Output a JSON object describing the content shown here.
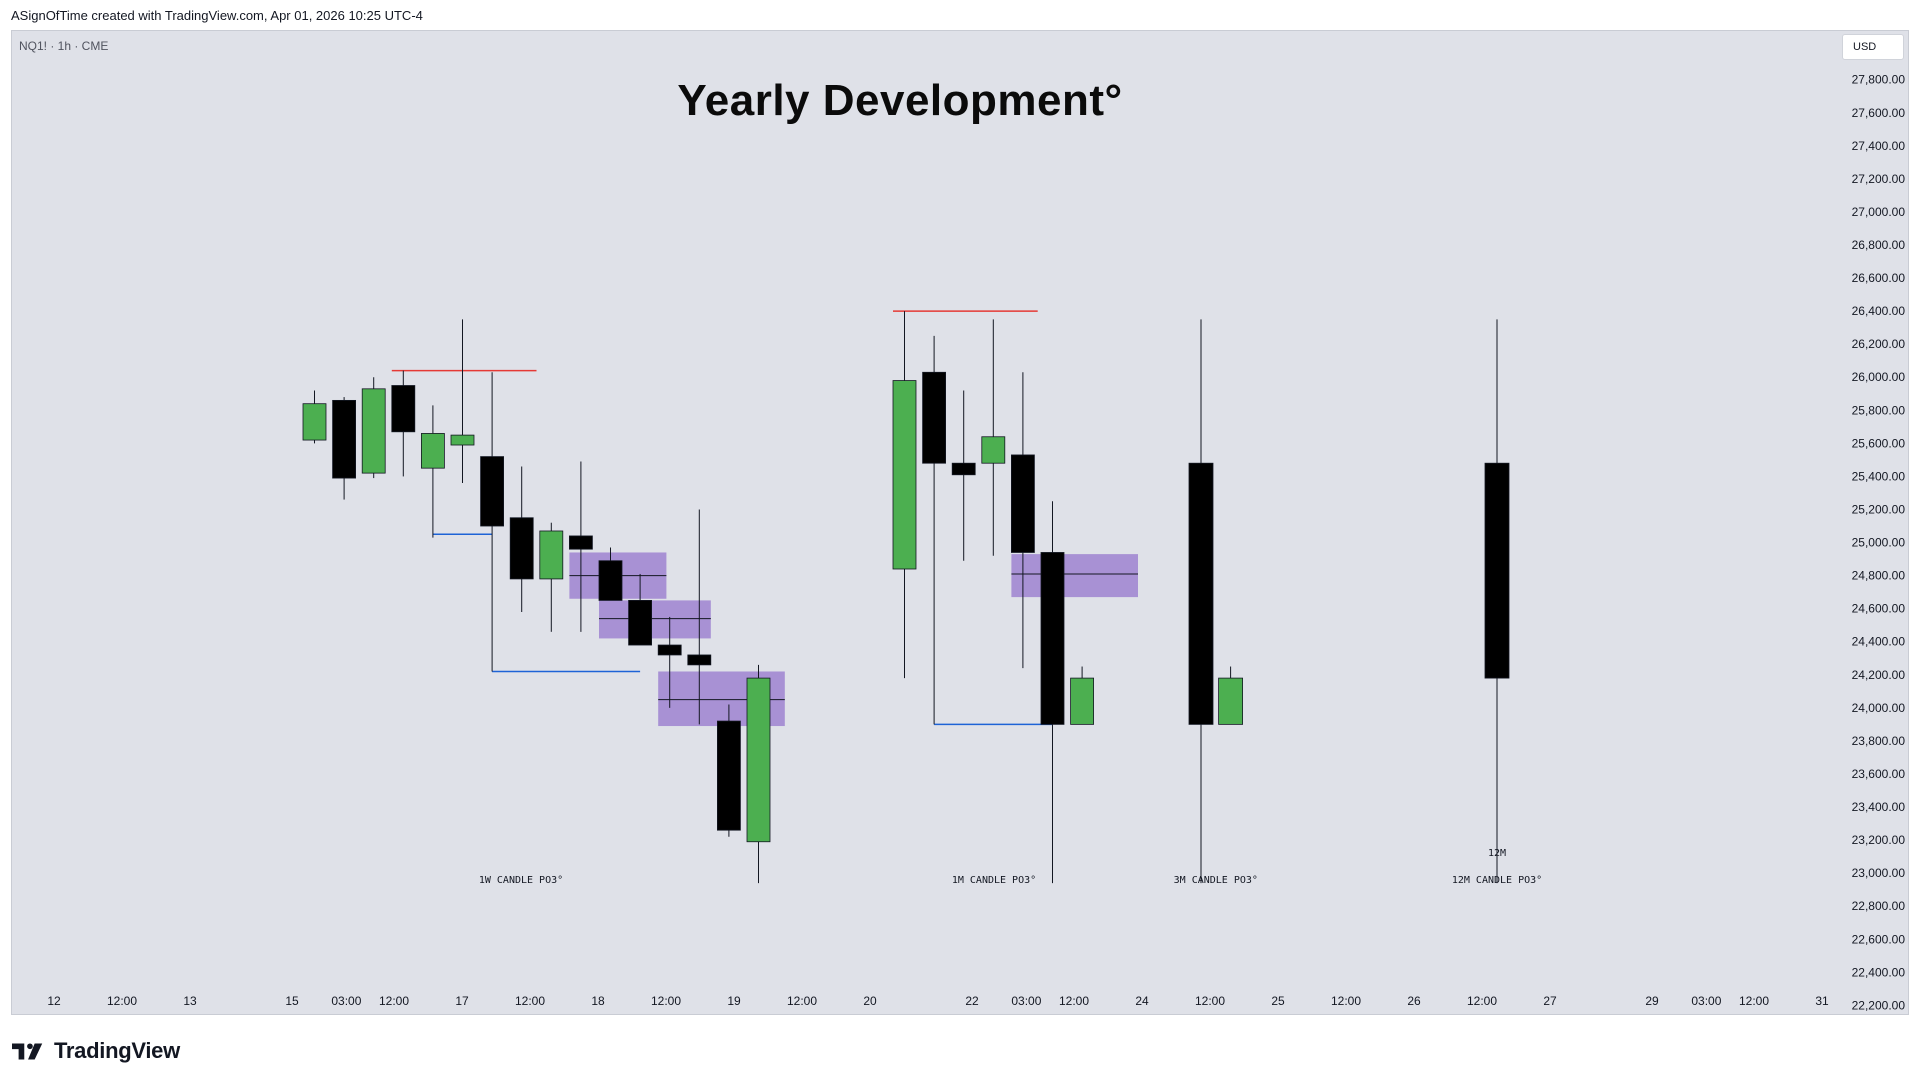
{
  "caption": "ASignOfTime created with TradingView.com, Apr 01, 2026 10:25 UTC-4",
  "symbol_info": "NQ1! · 1h · CME",
  "currency": "USD",
  "brand": {
    "name": "TradingView",
    "logo_icon": "tradingview-logo-icon"
  },
  "colors": {
    "up": "#4caf50",
    "down": "#000000",
    "fvg": "#9575cd",
    "high_line": "#e53935",
    "low_line": "#1e63d6",
    "panel": "#dfe1e8"
  },
  "chart_data": {
    "type": "candlestick",
    "title": "Yearly Development°",
    "ylim": [
      22000,
      27900
    ],
    "y_ticks": [
      22200,
      22400,
      22600,
      22800,
      23000,
      23200,
      23400,
      23600,
      23800,
      24000,
      24200,
      24400,
      24600,
      24800,
      25000,
      25200,
      25400,
      25600,
      25800,
      26000,
      26200,
      26400,
      26600,
      26800,
      27000,
      27200,
      27400,
      27600,
      27800
    ],
    "y_tick_labels": [
      "22,200.00",
      "22,400.00",
      "22,600.00",
      "22,800.00",
      "23,000.00",
      "23,200.00",
      "23,400.00",
      "23,600.00",
      "23,800.00",
      "24,000.00",
      "24,200.00",
      "24,400.00",
      "24,600.00",
      "24,800.00",
      "25,000.00",
      "25,200.00",
      "25,400.00",
      "25,600.00",
      "25,800.00",
      "26,000.00",
      "26,200.00",
      "26,400.00",
      "26,600.00",
      "26,800.00",
      "27,000.00",
      "27,200.00",
      "27,400.00",
      "27,600.00",
      "27,800.00"
    ],
    "x_ticks": [
      "12",
      "12:00",
      "13",
      "15",
      "03:00",
      "12:00",
      "17",
      "12:00",
      "18",
      "12:00",
      "19",
      "12:00",
      "20",
      "22",
      "03:00",
      "12:00",
      "24",
      "12:00",
      "25",
      "12:00",
      "26",
      "12:00",
      "27",
      "29",
      "03:00",
      "12:00",
      "31"
    ],
    "x_tick_index": [
      0,
      1,
      2,
      3.5,
      4.3,
      5,
      6,
      7,
      8,
      9,
      10,
      11,
      12,
      13.5,
      14.3,
      15,
      16,
      17,
      18,
      19,
      20,
      21,
      22,
      23.5,
      24.3,
      25,
      26
    ],
    "groups": [
      {
        "label": "1W CANDLE PO3°",
        "candles": [
          {
            "o": 25620,
            "h": 25920,
            "l": 25600,
            "c": 25840
          },
          {
            "o": 25860,
            "h": 25880,
            "l": 25260,
            "c": 25390
          },
          {
            "o": 25420,
            "h": 26000,
            "l": 25390,
            "c": 25930
          },
          {
            "o": 25950,
            "h": 26040,
            "l": 25400,
            "c": 25670
          },
          {
            "o": 25450,
            "h": 25830,
            "l": 25030,
            "c": 25660
          },
          {
            "o": 25590,
            "h": 26350,
            "l": 25360,
            "c": 25650
          },
          {
            "o": 25520,
            "h": 26030,
            "l": 24220,
            "c": 25100
          },
          {
            "o": 25150,
            "h": 25460,
            "l": 24580,
            "c": 24780
          },
          {
            "o": 24780,
            "h": 25120,
            "l": 24460,
            "c": 25070
          },
          {
            "o": 25040,
            "h": 25490,
            "l": 24460,
            "c": 24960
          },
          {
            "o": 24890,
            "h": 24970,
            "l": 24650,
            "c": 24650
          },
          {
            "o": 24650,
            "h": 24810,
            "l": 24380,
            "c": 24380
          },
          {
            "o": 24380,
            "h": 24550,
            "l": 24000,
            "c": 24320
          },
          {
            "o": 24320,
            "h": 25200,
            "l": 23900,
            "c": 24260
          },
          {
            "o": 23920,
            "h": 24020,
            "l": 23220,
            "c": 23260
          },
          {
            "o": 23190,
            "h": 24260,
            "l": 22940,
            "c": 24180
          }
        ],
        "fvg_zones": [
          {
            "i0": 9,
            "i1": 11.5,
            "top": 24940,
            "bottom": 24660,
            "mid": 24800
          },
          {
            "i0": 10,
            "i1": 13,
            "top": 24650,
            "bottom": 24420,
            "mid": 24540
          },
          {
            "i0": 12,
            "i1": 15.5,
            "top": 24220,
            "bottom": 23890,
            "mid": 24050
          }
        ],
        "lines": [
          {
            "kind": "high",
            "i0": 3,
            "i1": 7.5,
            "value": 26040
          },
          {
            "kind": "low",
            "i0": 4,
            "i1": 6,
            "value": 25050
          },
          {
            "kind": "low",
            "i0": 6,
            "i1": 11,
            "value": 24220
          }
        ]
      },
      {
        "label": "1M CANDLE PO3°",
        "candles": [
          {
            "o": 24840,
            "h": 26400,
            "l": 24180,
            "c": 25980
          },
          {
            "o": 26030,
            "h": 26250,
            "l": 23900,
            "c": 25480
          },
          {
            "o": 25480,
            "h": 25920,
            "l": 24890,
            "c": 25410
          },
          {
            "o": 25480,
            "h": 26350,
            "l": 24920,
            "c": 25640
          },
          {
            "o": 25530,
            "h": 26030,
            "l": 24240,
            "c": 24940
          },
          {
            "o": 24940,
            "h": 25250,
            "l": 22940,
            "c": 23900
          },
          {
            "o": 23900,
            "h": 24250,
            "l": 23900,
            "c": 24180
          }
        ],
        "fvg_zones": [
          {
            "i0": 4,
            "i1": 7.5,
            "top": 24930,
            "bottom": 24670,
            "mid": 24810
          }
        ],
        "lines": [
          {
            "kind": "high",
            "i0": 0,
            "i1": 4.5,
            "value": 26400
          },
          {
            "kind": "low",
            "i0": 1,
            "i1": 5,
            "value": 23900
          }
        ]
      },
      {
        "label": "3M CANDLE PO3°",
        "candles": [
          {
            "o": 25480,
            "h": 26350,
            "l": 22940,
            "c": 23900
          },
          {
            "o": 23900,
            "h": 24250,
            "l": 23900,
            "c": 24180
          }
        ],
        "fvg_zones": [],
        "lines": []
      },
      {
        "label": "12M CANDLE PO3°",
        "bar_label": "12M",
        "candles": [
          {
            "o": 25480,
            "h": 26350,
            "l": 22940,
            "c": 24180
          }
        ],
        "fvg_zones": [],
        "lines": []
      }
    ]
  }
}
